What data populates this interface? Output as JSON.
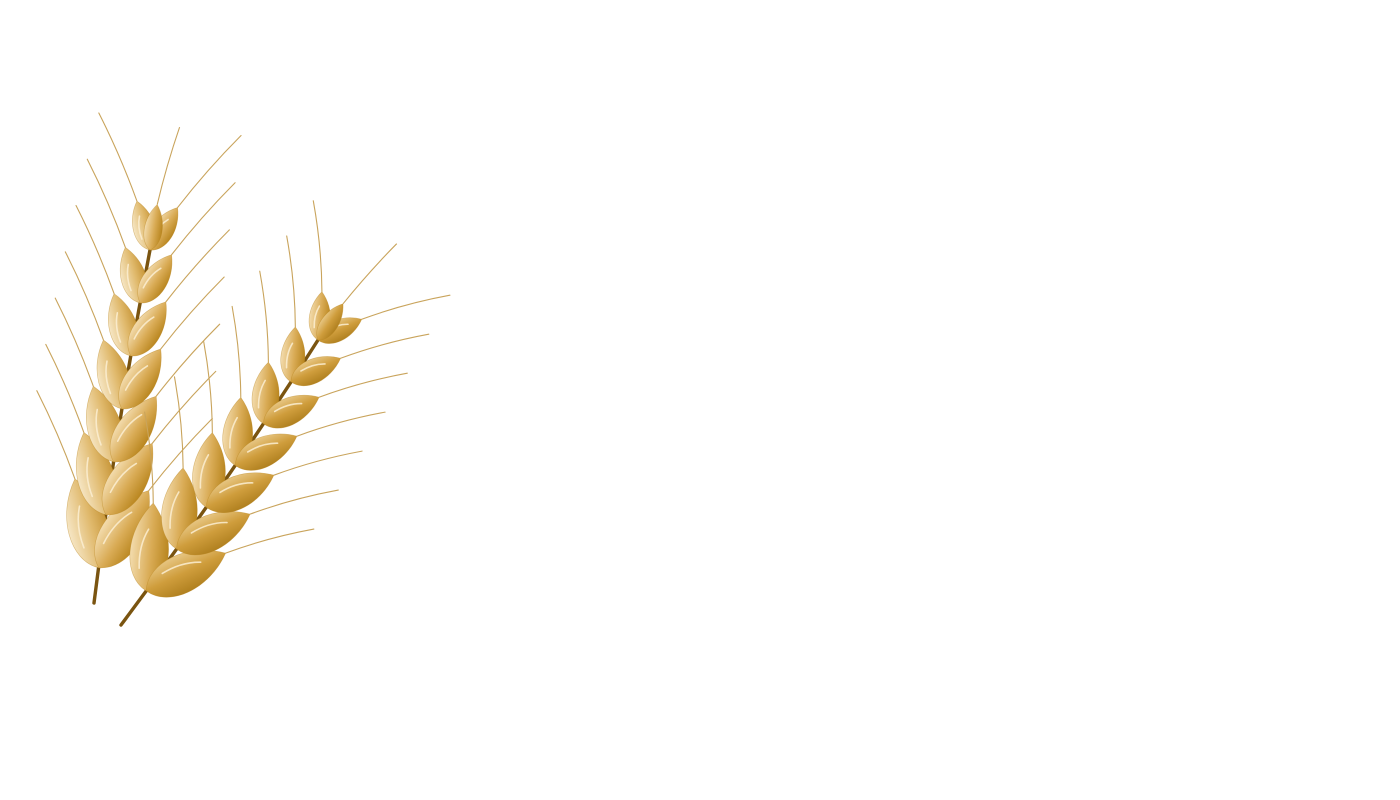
{
  "scene": {
    "background": "#ffffff",
    "subject": "wheat-ears",
    "colors": {
      "stem": "#7a5410",
      "kernel_light": "#f3dcae",
      "kernel_mid": "#d9ab55",
      "kernel_dark": "#b9861f",
      "awn": "#c9a45c",
      "highlight": "#fbefd2"
    }
  }
}
